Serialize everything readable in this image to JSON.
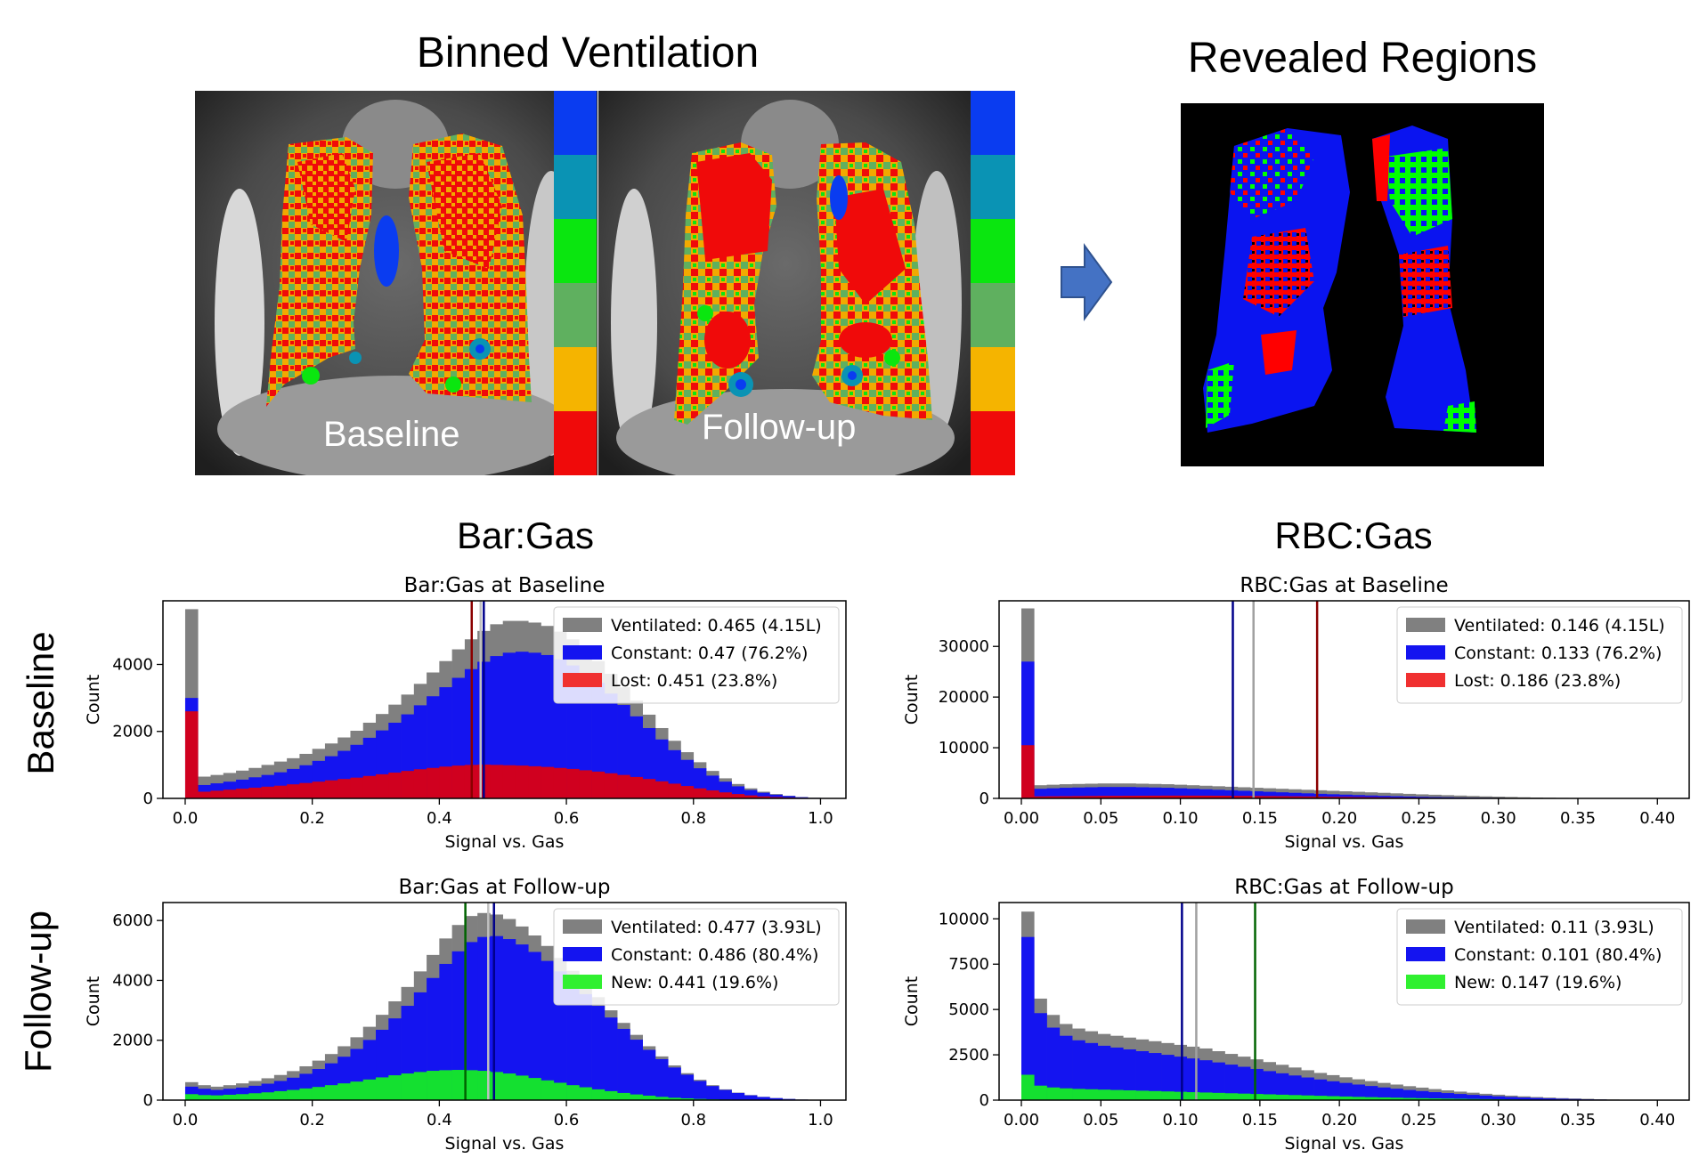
{
  "figure": {
    "binned_title": "Binned Ventilation",
    "revealed_title": "Revealed Regions",
    "baseline_image_label": "Baseline",
    "followup_image_label": "Follow-up",
    "bargas_title": "Bar:Gas",
    "rbcgas_title": "RBC:Gas",
    "row_baseline": "Baseline",
    "row_followup": "Follow-up",
    "bin_colors": [
      "#0a3cf0",
      "#0a93b4",
      "#0ae60f",
      "#5fb05f",
      "#f5b400",
      "#f00a0a"
    ],
    "arrow_icon": "arrow-right-icon"
  },
  "chart_data": [
    {
      "id": "bar-baseline",
      "type": "histogram",
      "title": "Bar:Gas at Baseline",
      "xlabel": "Signal vs. Gas",
      "ylabel": "Count",
      "xlim": [
        -0.035,
        1.04
      ],
      "ylim": [
        0,
        5900
      ],
      "xticks": [
        0.0,
        0.2,
        0.4,
        0.6,
        0.8,
        1.0
      ],
      "xticklabels": [
        "0.0",
        "0.2",
        "0.4",
        "0.6",
        "0.8",
        "1.0"
      ],
      "yticks": [
        0,
        2000,
        4000
      ],
      "yticklabels": [
        "0",
        "2000",
        "4000"
      ],
      "bin_start": 0.0,
      "bin_width": 0.02,
      "series": [
        {
          "name": "Ventilated",
          "color": "#808080",
          "values": [
            5650,
            650,
            700,
            760,
            830,
            910,
            1000,
            1100,
            1200,
            1330,
            1480,
            1640,
            1820,
            2020,
            2260,
            2520,
            2800,
            3100,
            3420,
            3760,
            4100,
            4450,
            4750,
            5000,
            5200,
            5300,
            5300,
            5250,
            5150,
            4980,
            4750,
            4450,
            4100,
            3720,
            3320,
            2920,
            2500,
            2100,
            1720,
            1380,
            1080,
            820,
            600,
            430,
            300,
            200,
            130,
            80,
            40,
            20
          ]
        },
        {
          "name": "Constant",
          "color": "#1414f0",
          "values": [
            3000,
            400,
            450,
            500,
            560,
            630,
            700,
            780,
            880,
            990,
            1120,
            1260,
            1420,
            1600,
            1810,
            2030,
            2260,
            2510,
            2780,
            3050,
            3320,
            3600,
            3860,
            4080,
            4250,
            4350,
            4380,
            4350,
            4280,
            4150,
            3970,
            3730,
            3450,
            3130,
            2790,
            2450,
            2100,
            1760,
            1440,
            1150,
            900,
            680,
            500,
            360,
            250,
            170,
            110,
            70,
            35,
            15
          ]
        },
        {
          "name": "Lost",
          "color": "#d0001f",
          "values": [
            2600,
            200,
            230,
            260,
            290,
            320,
            350,
            380,
            420,
            460,
            500,
            540,
            580,
            620,
            670,
            720,
            770,
            820,
            870,
            910,
            950,
            980,
            1000,
            1010,
            1000,
            990,
            980,
            960,
            940,
            910,
            880,
            840,
            800,
            750,
            700,
            640,
            580,
            510,
            440,
            370,
            300,
            240,
            180,
            130,
            90,
            60,
            40,
            25,
            15,
            8
          ]
        }
      ],
      "vlines": [
        {
          "x": 0.451,
          "color": "#8b0000"
        },
        {
          "x": 0.465,
          "color": "#c0c0c0"
        },
        {
          "x": 0.47,
          "color": "#00008b"
        }
      ],
      "legend": [
        {
          "label": "Ventilated: 0.465 (4.15L)",
          "color": "#808080"
        },
        {
          "label": "Constant: 0.47 (76.2%)",
          "color": "#1414f0"
        },
        {
          "label": "Lost: 0.451 (23.8%)",
          "color": "#f03030"
        }
      ],
      "legend_loc": "upper right"
    },
    {
      "id": "rbc-baseline",
      "type": "histogram",
      "title": "RBC:Gas at Baseline",
      "xlabel": "Signal vs. Gas",
      "ylabel": "Count",
      "xlim": [
        -0.014,
        0.42
      ],
      "ylim": [
        0,
        39000
      ],
      "xticks": [
        0.0,
        0.05,
        0.1,
        0.15,
        0.2,
        0.25,
        0.3,
        0.35,
        0.4
      ],
      "xticklabels": [
        "0.00",
        "0.05",
        "0.10",
        "0.15",
        "0.20",
        "0.25",
        "0.30",
        "0.35",
        "0.40"
      ],
      "yticks": [
        0,
        10000,
        20000,
        30000
      ],
      "yticklabels": [
        "0",
        "10000",
        "20000",
        "30000"
      ],
      "bin_start": 0.0,
      "bin_width": 0.008,
      "series": [
        {
          "name": "Ventilated",
          "color": "#808080",
          "values": [
            37500,
            2600,
            2700,
            2800,
            2850,
            2900,
            2950,
            2950,
            2950,
            2900,
            2850,
            2800,
            2700,
            2600,
            2500,
            2400,
            2300,
            2200,
            2100,
            2000,
            1900,
            1800,
            1700,
            1600,
            1500,
            1400,
            1300,
            1200,
            1100,
            1000,
            900,
            800,
            720,
            640,
            560,
            480,
            400,
            340,
            280,
            220,
            170,
            130,
            100,
            70,
            50,
            30,
            20,
            10,
            5,
            2
          ]
        },
        {
          "name": "Constant",
          "color": "#1414f0",
          "values": [
            27000,
            1900,
            2000,
            2100,
            2150,
            2200,
            2250,
            2250,
            2250,
            2200,
            2150,
            2100,
            2000,
            1900,
            1800,
            1700,
            1600,
            1500,
            1400,
            1300,
            1200,
            1100,
            1000,
            900,
            820,
            740,
            660,
            580,
            500,
            430,
            370,
            310,
            260,
            220,
            180,
            150,
            120,
            100,
            80,
            60,
            45,
            35,
            25,
            18,
            12,
            8,
            5,
            3,
            2,
            1
          ]
        },
        {
          "name": "Lost",
          "color": "#d0001f",
          "values": [
            10500,
            400,
            420,
            440,
            460,
            480,
            500,
            510,
            520,
            530,
            540,
            550,
            550,
            550,
            540,
            530,
            520,
            500,
            480,
            460,
            440,
            410,
            380,
            350,
            320,
            290,
            260,
            230,
            200,
            170,
            140,
            120,
            100,
            80,
            65,
            50,
            40,
            30,
            22,
            16,
            12,
            8,
            6,
            4,
            3,
            2,
            1,
            1,
            0,
            0
          ]
        }
      ],
      "vlines": [
        {
          "x": 0.133,
          "color": "#00008b"
        },
        {
          "x": 0.146,
          "color": "#a0a0a0"
        },
        {
          "x": 0.186,
          "color": "#8b0000"
        }
      ],
      "legend": [
        {
          "label": "Ventilated: 0.146 (4.15L)",
          "color": "#808080"
        },
        {
          "label": "Constant: 0.133 (76.2%)",
          "color": "#1414f0"
        },
        {
          "label": "Lost: 0.186 (23.8%)",
          "color": "#f03030"
        }
      ],
      "legend_loc": "upper right"
    },
    {
      "id": "bar-followup",
      "type": "histogram",
      "title": "Bar:Gas at Follow-up",
      "xlabel": "Signal vs. Gas",
      "ylabel": "Count",
      "xlim": [
        -0.035,
        1.04
      ],
      "ylim": [
        0,
        6600
      ],
      "xticks": [
        0.0,
        0.2,
        0.4,
        0.6,
        0.8,
        1.0
      ],
      "xticklabels": [
        "0.0",
        "0.2",
        "0.4",
        "0.6",
        "0.8",
        "1.0"
      ],
      "yticks": [
        0,
        2000,
        4000,
        6000
      ],
      "yticklabels": [
        "0",
        "2000",
        "4000",
        "6000"
      ],
      "bin_start": 0.0,
      "bin_width": 0.02,
      "series": [
        {
          "name": "Ventilated",
          "color": "#808080",
          "values": [
            600,
            500,
            450,
            500,
            560,
            640,
            730,
            840,
            970,
            1130,
            1320,
            1540,
            1800,
            2100,
            2450,
            2850,
            3300,
            3780,
            4300,
            4850,
            5400,
            5850,
            6150,
            6250,
            6200,
            6050,
            5800,
            5500,
            5150,
            4750,
            4320,
            3880,
            3440,
            3000,
            2580,
            2180,
            1800,
            1460,
            1160,
            900,
            680,
            500,
            360,
            250,
            170,
            110,
            70,
            40,
            20,
            10
          ]
        },
        {
          "name": "Constant",
          "color": "#1414f0",
          "values": [
            450,
            380,
            340,
            380,
            420,
            480,
            550,
            640,
            750,
            880,
            1040,
            1230,
            1450,
            1710,
            2010,
            2350,
            2730,
            3150,
            3600,
            4080,
            4550,
            4970,
            5280,
            5450,
            5480,
            5380,
            5200,
            4950,
            4650,
            4300,
            3930,
            3540,
            3150,
            2760,
            2380,
            2020,
            1680,
            1370,
            1090,
            850,
            640,
            470,
            340,
            240,
            160,
            105,
            65,
            38,
            18,
            8
          ]
        },
        {
          "name": "New",
          "color": "#14e030",
          "values": [
            200,
            170,
            160,
            180,
            200,
            230,
            260,
            300,
            340,
            390,
            440,
            500,
            560,
            620,
            690,
            760,
            830,
            890,
            940,
            980,
            1000,
            1010,
            1000,
            980,
            940,
            890,
            820,
            740,
            660,
            580,
            500,
            430,
            360,
            300,
            240,
            190,
            150,
            110,
            80,
            60,
            40,
            28,
            18,
            12,
            8,
            5,
            3,
            2,
            1,
            0
          ]
        }
      ],
      "vlines": [
        {
          "x": 0.441,
          "color": "#006400"
        },
        {
          "x": 0.477,
          "color": "#c0c0c0"
        },
        {
          "x": 0.486,
          "color": "#00008b"
        }
      ],
      "legend": [
        {
          "label": "Ventilated: 0.477 (3.93L)",
          "color": "#808080"
        },
        {
          "label": "Constant: 0.486 (80.4%)",
          "color": "#1414f0"
        },
        {
          "label": "New: 0.441 (19.6%)",
          "color": "#30f030"
        }
      ],
      "legend_loc": "upper right"
    },
    {
      "id": "rbc-followup",
      "type": "histogram",
      "title": "RBC:Gas at Follow-up",
      "xlabel": "Signal vs. Gas",
      "ylabel": "Count",
      "xlim": [
        -0.014,
        0.42
      ],
      "ylim": [
        0,
        10900
      ],
      "xticks": [
        0.0,
        0.05,
        0.1,
        0.15,
        0.2,
        0.25,
        0.3,
        0.35,
        0.4
      ],
      "xticklabels": [
        "0.00",
        "0.05",
        "0.10",
        "0.15",
        "0.20",
        "0.25",
        "0.30",
        "0.35",
        "0.40"
      ],
      "yticks": [
        0,
        2500,
        5000,
        7500,
        10000
      ],
      "yticklabels": [
        "0",
        "2500",
        "5000",
        "7500",
        "10000"
      ],
      "bin_start": 0.0,
      "bin_width": 0.008,
      "series": [
        {
          "name": "Ventilated",
          "color": "#808080",
          "values": [
            10400,
            5600,
            4700,
            4200,
            3950,
            3800,
            3650,
            3550,
            3450,
            3350,
            3250,
            3150,
            3050,
            2950,
            2850,
            2700,
            2550,
            2400,
            2250,
            2100,
            1950,
            1800,
            1650,
            1500,
            1380,
            1260,
            1150,
            1050,
            950,
            860,
            770,
            690,
            610,
            540,
            470,
            410,
            350,
            300,
            250,
            210,
            170,
            140,
            110,
            90,
            70,
            50,
            35,
            25,
            15,
            10
          ]
        },
        {
          "name": "Constant",
          "color": "#1414f0",
          "values": [
            9000,
            4800,
            4000,
            3550,
            3300,
            3150,
            3000,
            2900,
            2800,
            2700,
            2600,
            2500,
            2400,
            2300,
            2200,
            2080,
            1960,
            1840,
            1720,
            1600,
            1480,
            1360,
            1250,
            1140,
            1040,
            950,
            860,
            780,
            700,
            630,
            560,
            500,
            440,
            390,
            340,
            290,
            250,
            210,
            175,
            145,
            120,
            95,
            75,
            60,
            45,
            32,
            22,
            15,
            9,
            5
          ]
        },
        {
          "name": "New",
          "color": "#14e030",
          "values": [
            1400,
            800,
            700,
            650,
            620,
            600,
            580,
            560,
            540,
            520,
            500,
            480,
            460,
            440,
            420,
            400,
            380,
            360,
            340,
            320,
            300,
            280,
            260,
            240,
            220,
            200,
            180,
            165,
            150,
            135,
            120,
            108,
            96,
            85,
            75,
            65,
            56,
            48,
            40,
            33,
            27,
            22,
            18,
            14,
            10,
            7,
            5,
            3,
            2,
            1
          ]
        }
      ],
      "vlines": [
        {
          "x": 0.101,
          "color": "#00008b"
        },
        {
          "x": 0.11,
          "color": "#a0a0a0"
        },
        {
          "x": 0.147,
          "color": "#006400"
        }
      ],
      "legend": [
        {
          "label": "Ventilated: 0.11 (3.93L)",
          "color": "#808080"
        },
        {
          "label": "Constant: 0.101 (80.4%)",
          "color": "#1414f0"
        },
        {
          "label": "New: 0.147 (19.6%)",
          "color": "#30f030"
        }
      ],
      "legend_loc": "upper right"
    }
  ]
}
